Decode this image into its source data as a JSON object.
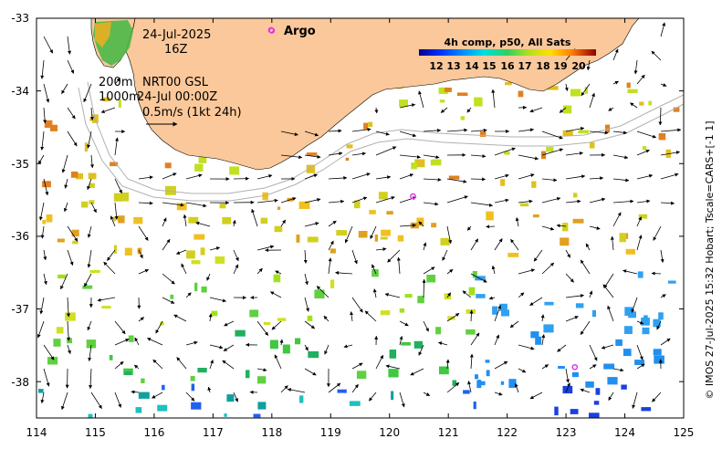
{
  "map": {
    "date_line": "24-Jul-2025",
    "hour_line": "16Z",
    "isobath_shallow": "200m",
    "isobath_deep": "1000m",
    "product_line": "NRT00 GSL",
    "product_time": "24-Jul 00:00Z",
    "scale_note": "0.5m/s (1kt 24h)",
    "argo_label": "Argo",
    "credit": "© IMOS 27-Jul-2025 15:32 Hobart; Tscale=CARS+[-1 1]",
    "colors": {
      "land": "#fac89a",
      "ocean": "#ffffff",
      "argo": "#e633e6"
    }
  },
  "legend": {
    "title": "4h comp, p50, All Sats",
    "ticks": [
      "12",
      "13",
      "14",
      "15",
      "16",
      "17",
      "18",
      "19",
      "20"
    ],
    "range": [
      11,
      21
    ]
  },
  "axes": {
    "x_ticks": [
      "114",
      "115",
      "116",
      "117",
      "118",
      "119",
      "120",
      "121",
      "122",
      "123",
      "124",
      "125"
    ],
    "y_ticks": [
      "-33",
      "-34",
      "-35",
      "-36",
      "-37",
      "-38"
    ],
    "lon_range": [
      114,
      125
    ],
    "lat_range": [
      -38.5,
      -33
    ]
  },
  "argo_floats": [
    {
      "lon": 118.0,
      "lat": -33.17
    },
    {
      "lon": 120.4,
      "lat": -35.45
    },
    {
      "lon": 123.15,
      "lat": -37.8
    }
  ]
}
